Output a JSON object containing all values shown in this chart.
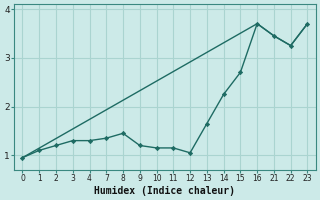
{
  "xlabel": "Humidex (Indice chaleur)",
  "bg_color": "#cceae8",
  "line_color": "#1e6b63",
  "grid_color": "#aad4d0",
  "tick_labels": [
    "0",
    "1",
    "2",
    "3",
    "4",
    "7",
    "8",
    "9",
    "10",
    "11",
    "12",
    "13",
    "14",
    "15",
    "16",
    "21",
    "22",
    "23"
  ],
  "line1_indices": [
    0,
    1,
    2,
    3,
    4,
    5,
    6,
    7,
    8,
    9,
    10,
    11,
    12,
    13,
    14,
    15,
    16,
    17
  ],
  "line1_y": [
    0.95,
    1.1,
    1.2,
    1.3,
    1.3,
    1.35,
    1.45,
    1.2,
    1.15,
    1.15,
    1.05,
    1.65,
    2.25,
    2.7,
    3.7,
    3.45,
    3.25,
    3.7
  ],
  "line2_indices": [
    0,
    14,
    15,
    16,
    17
  ],
  "line2_y": [
    0.95,
    3.7,
    3.45,
    3.25,
    3.7
  ],
  "ylim": [
    0.7,
    4.1
  ],
  "yticks": [
    1,
    2,
    3,
    4
  ],
  "figsize": [
    3.2,
    2.0
  ],
  "dpi": 100
}
